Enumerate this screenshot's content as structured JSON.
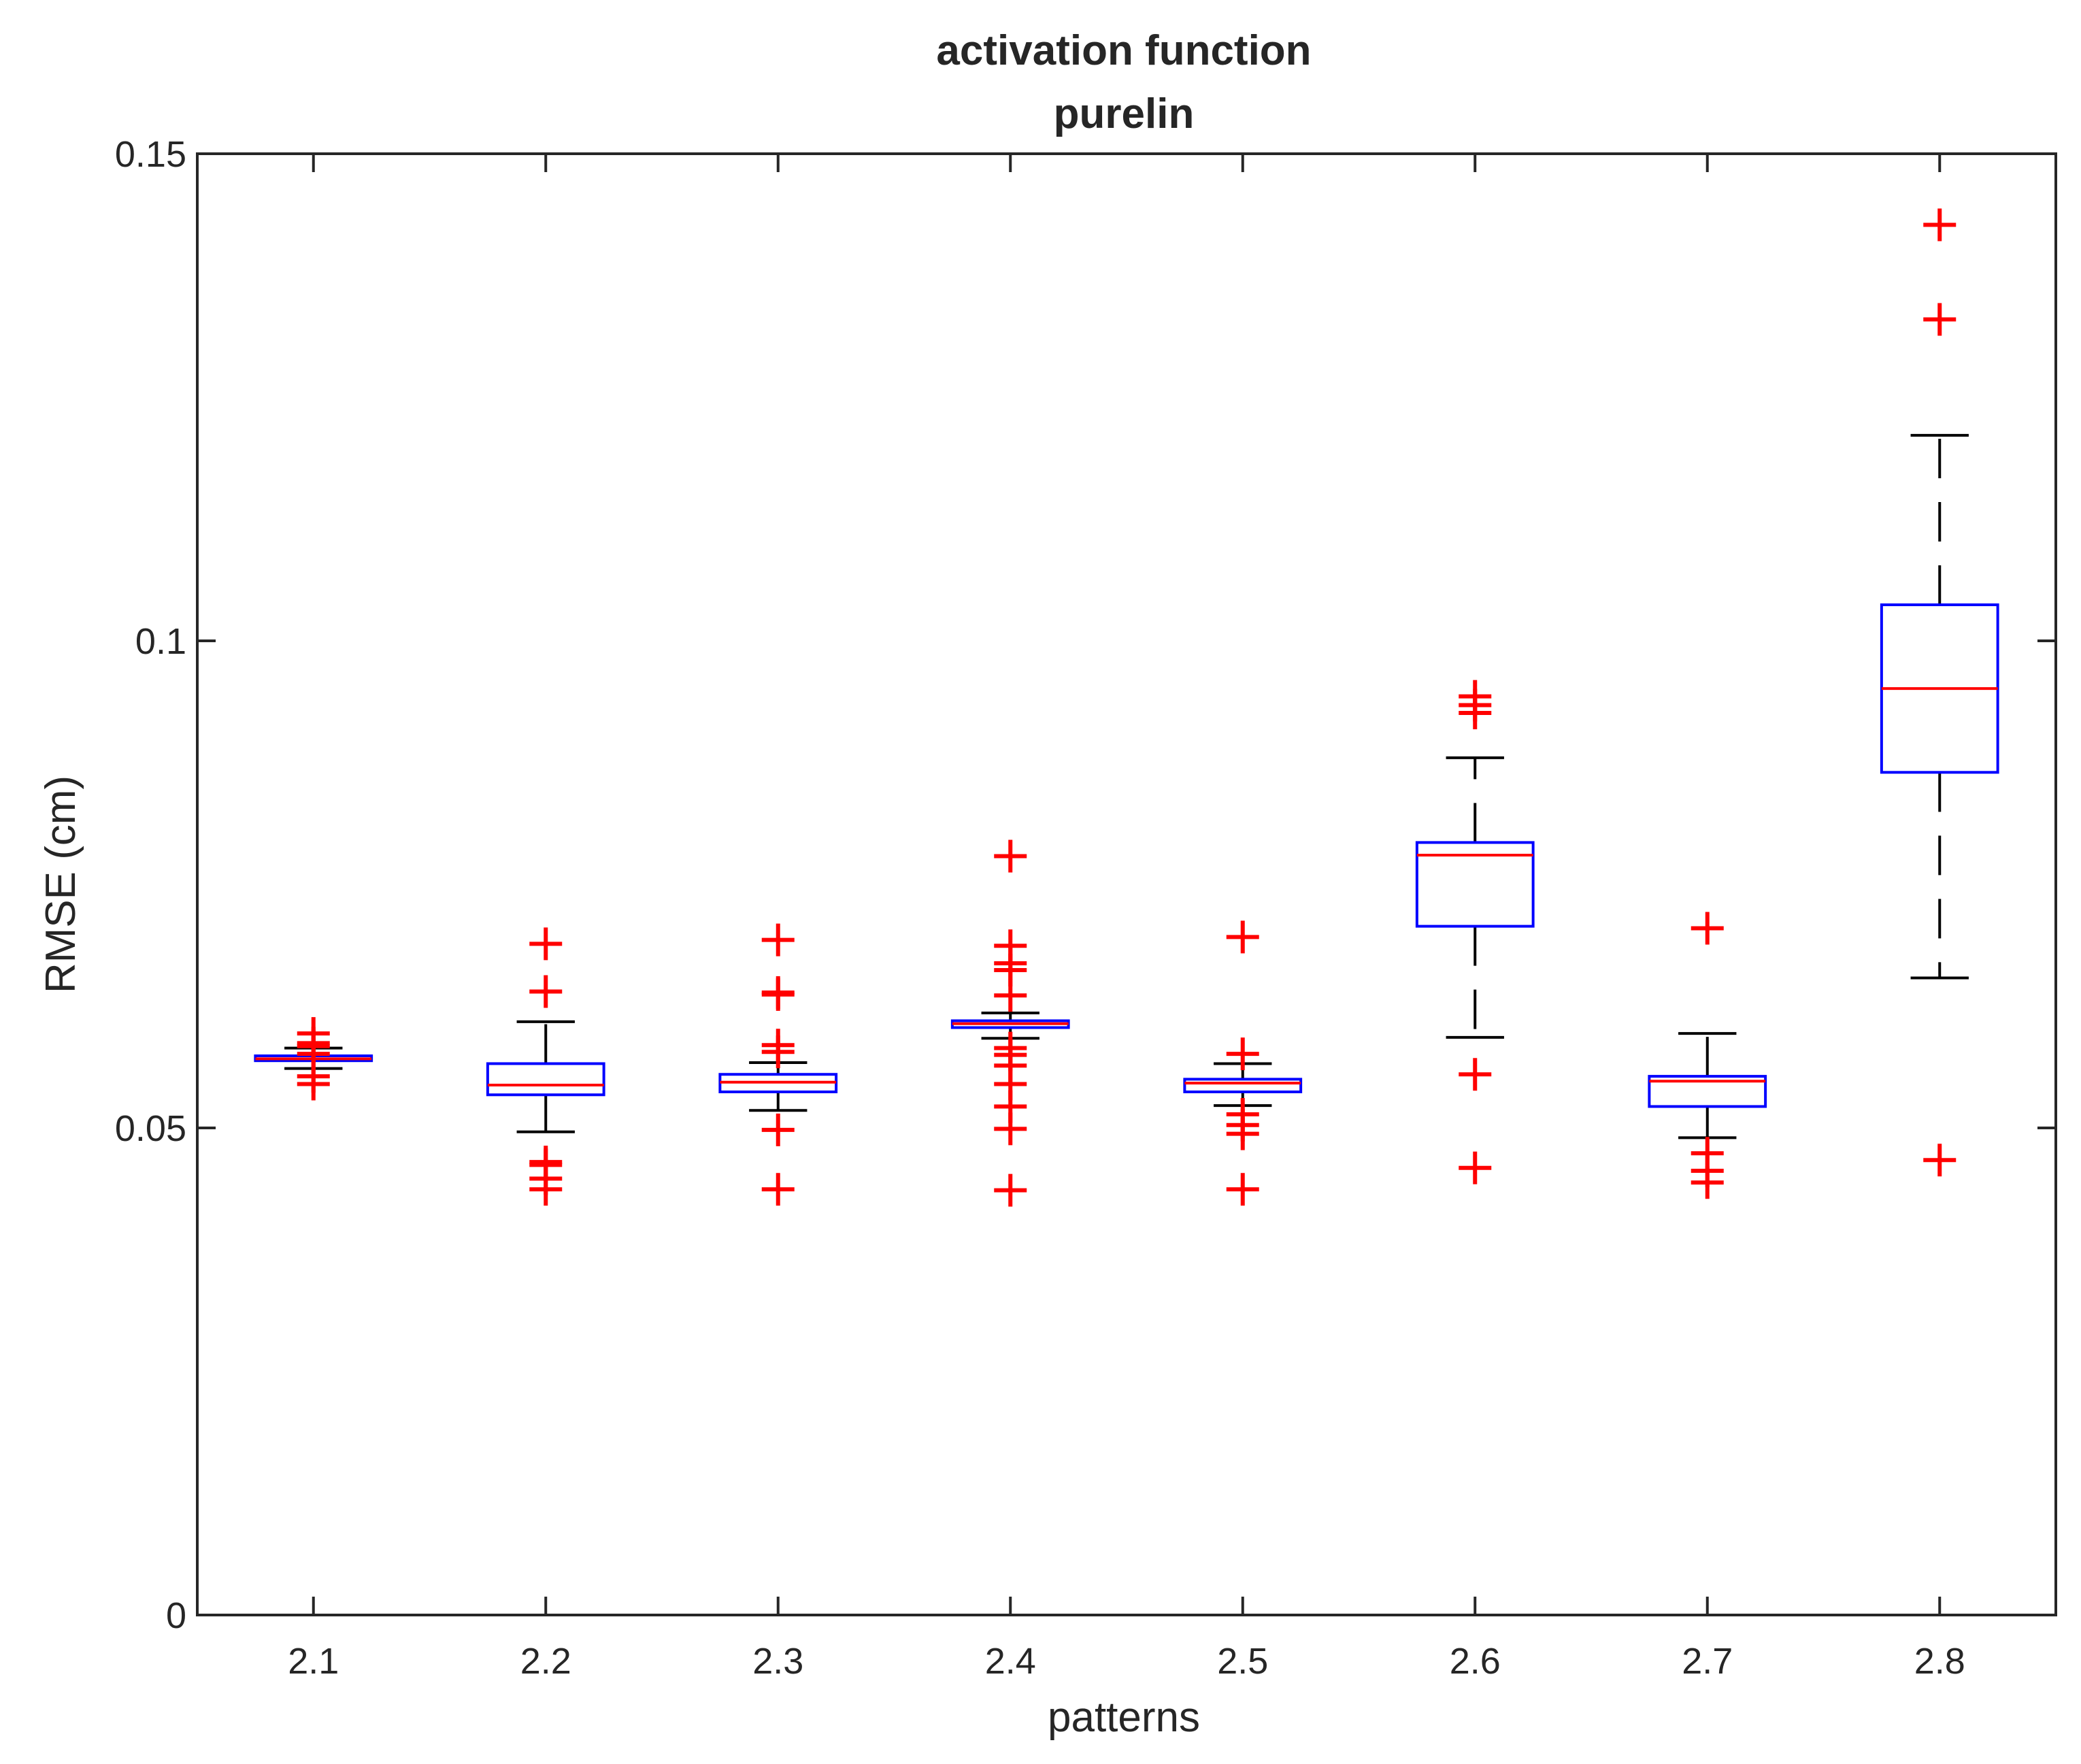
{
  "chart_data": {
    "type": "boxplot",
    "title": [
      "activation function",
      "purelin"
    ],
    "xlabel": "patterns",
    "ylabel": "RMSE (cm)",
    "ylim": [
      0,
      0.15
    ],
    "yticks": [
      0,
      0.05,
      0.1,
      0.15
    ],
    "ytick_labels": [
      "0",
      "0.05",
      "0.1",
      "0.15"
    ],
    "categories": [
      "2.1",
      "2.2",
      "2.3",
      "2.4",
      "2.5",
      "2.6",
      "2.7",
      "2.8"
    ],
    "colors": {
      "box": "#0000ff",
      "median": "#ff0000",
      "whisker": "#000000",
      "outlier": "#ff0000",
      "axis": "#262626"
    },
    "boxes": [
      {
        "category": "2.1",
        "q1": 0.0569,
        "median": 0.0571,
        "q3": 0.0574,
        "whisker_low": 0.0561,
        "whisker_high": 0.0582,
        "outliers": [
          0.0545,
          0.0553,
          0.0576,
          0.0584,
          0.0587,
          0.0597
        ]
      },
      {
        "category": "2.2",
        "q1": 0.0534,
        "median": 0.0544,
        "q3": 0.0566,
        "whisker_low": 0.0496,
        "whisker_high": 0.0609,
        "outliers": [
          0.0437,
          0.0448,
          0.0462,
          0.0465,
          0.064,
          0.0689
        ]
      },
      {
        "category": "2.3",
        "q1": 0.0537,
        "median": 0.0547,
        "q3": 0.0555,
        "whisker_low": 0.0518,
        "whisker_high": 0.0567,
        "outliers": [
          0.0437,
          0.0498,
          0.0578,
          0.0585,
          0.0637,
          0.0639,
          0.0693
        ]
      },
      {
        "category": "2.4",
        "q1": 0.0603,
        "median": 0.0607,
        "q3": 0.061,
        "whisker_low": 0.0592,
        "whisker_high": 0.0618,
        "outliers": [
          0.0436,
          0.0499,
          0.0522,
          0.0545,
          0.0564,
          0.0575,
          0.0582,
          0.0636,
          0.0662,
          0.0669,
          0.0687,
          0.0779
        ]
      },
      {
        "category": "2.5",
        "q1": 0.0537,
        "median": 0.0546,
        "q3": 0.055,
        "whisker_low": 0.0523,
        "whisker_high": 0.0566,
        "outliers": [
          0.0437,
          0.0494,
          0.0503,
          0.0514,
          0.0576,
          0.0696
        ]
      },
      {
        "category": "2.6",
        "q1": 0.0707,
        "median": 0.078,
        "q3": 0.0793,
        "whisker_low": 0.0593,
        "whisker_high": 0.088,
        "outliers": [
          0.0459,
          0.0555,
          0.0926,
          0.0934,
          0.0943
        ]
      },
      {
        "category": "2.7",
        "q1": 0.0522,
        "median": 0.0548,
        "q3": 0.0553,
        "whisker_low": 0.049,
        "whisker_high": 0.0597,
        "outliers": [
          0.0444,
          0.0456,
          0.0474,
          0.0705
        ]
      },
      {
        "category": "2.8",
        "q1": 0.0865,
        "median": 0.0951,
        "q3": 0.1037,
        "whisker_low": 0.0654,
        "whisker_high": 0.1211,
        "outliers": [
          0.0467,
          0.133,
          0.1427
        ]
      }
    ]
  }
}
